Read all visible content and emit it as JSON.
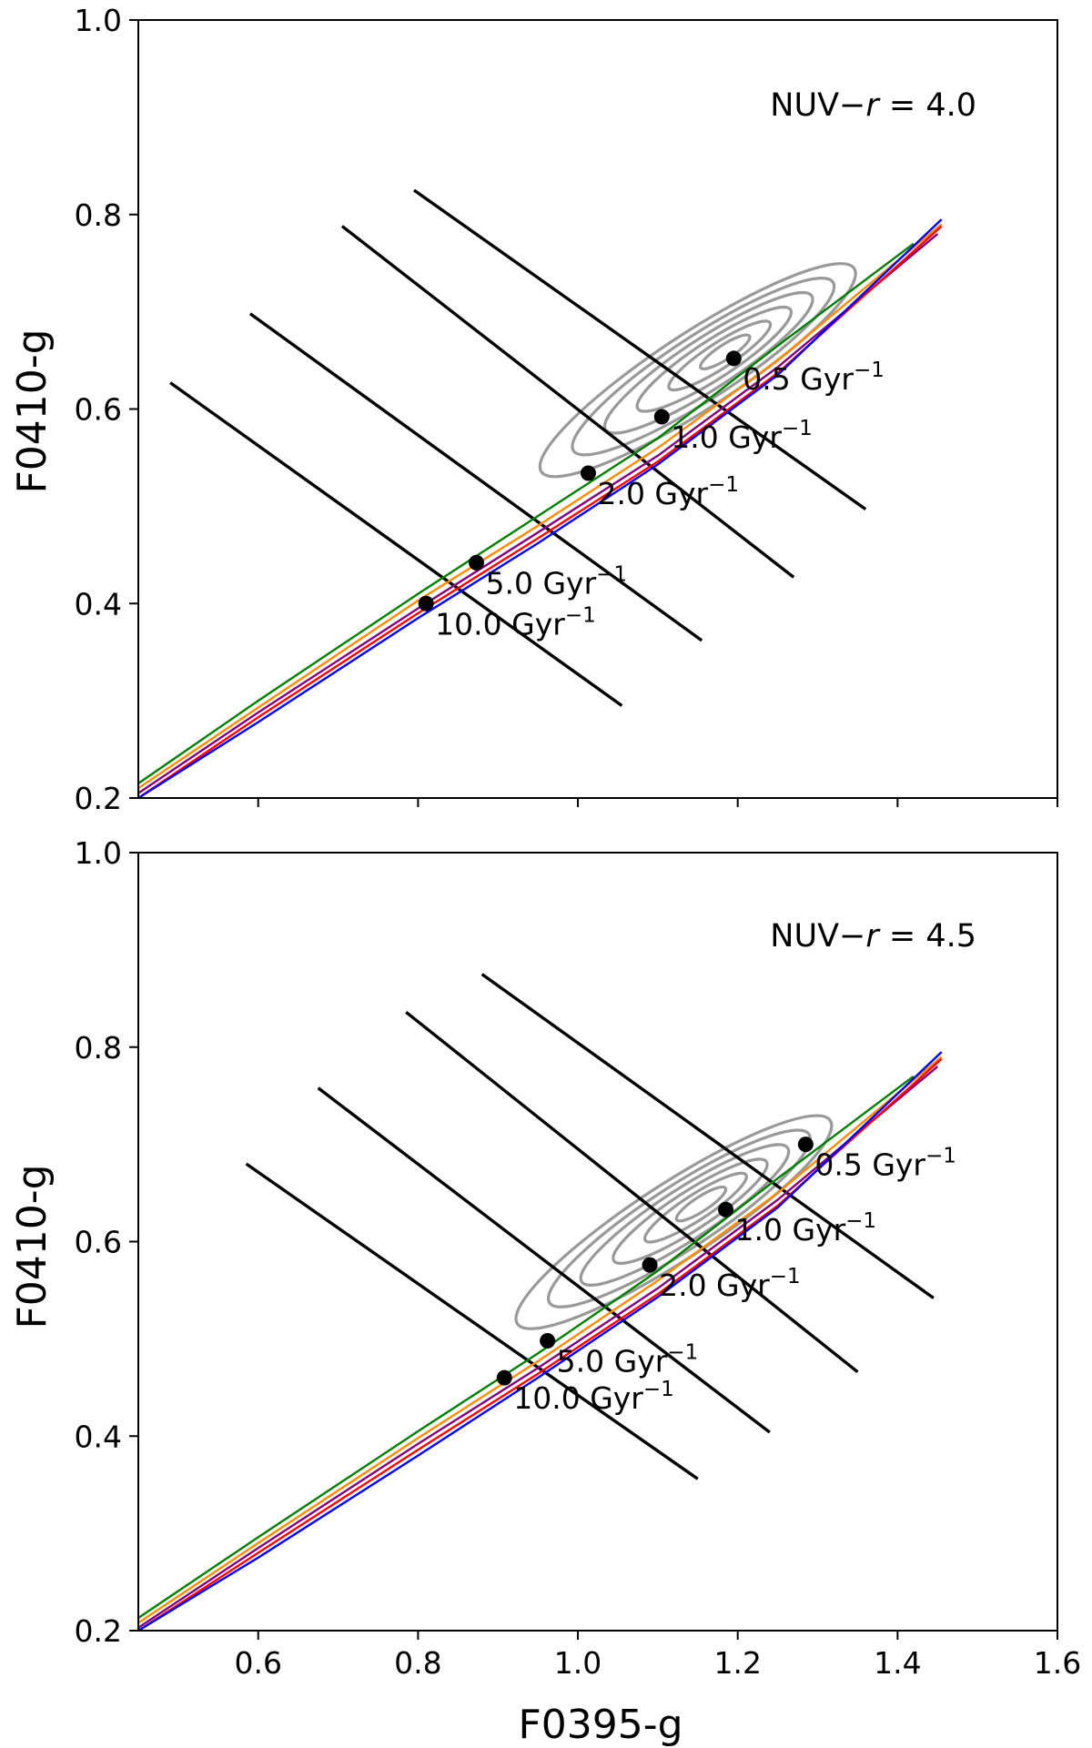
{
  "chart_data": [
    {
      "type": "line",
      "panel": "top",
      "annotation": {
        "prefix": "NUV−",
        "italic": "r",
        "suffix": " = 4.0"
      },
      "xlabel": "",
      "ylabel": "F0410-g",
      "xlim": [
        0.45,
        1.6
      ],
      "ylim": [
        0.2,
        1.0
      ],
      "xticks": [
        0.6,
        0.8,
        1.0,
        1.2,
        1.4,
        1.6
      ],
      "xtick_labels": [],
      "yticks": [
        0.2,
        0.4,
        0.6,
        0.8,
        1.0
      ],
      "ytick_labels": [
        "0.2",
        "0.4",
        "0.6",
        "0.8",
        "1.0"
      ],
      "series": [
        {
          "name": "green",
          "color": "#008000",
          "x": [
            0.45,
            0.6,
            0.8,
            0.95,
            1.1,
            1.25,
            1.42
          ],
          "y": [
            0.215,
            0.3,
            0.41,
            0.49,
            0.57,
            0.665,
            0.77
          ]
        },
        {
          "name": "orange",
          "color": "#ff8c00",
          "x": [
            0.45,
            0.6,
            0.8,
            0.95,
            1.1,
            1.25,
            1.455
          ],
          "y": [
            0.21,
            0.293,
            0.403,
            0.48,
            0.56,
            0.65,
            0.79
          ]
        },
        {
          "name": "purple",
          "color": "#800080",
          "x": [
            0.45,
            0.6,
            0.8,
            0.95,
            1.1,
            1.25,
            1.45
          ],
          "y": [
            0.205,
            0.288,
            0.395,
            0.473,
            0.552,
            0.643,
            0.78
          ]
        },
        {
          "name": "red",
          "color": "#ff0000",
          "x": [
            0.45,
            0.6,
            0.8,
            0.95,
            1.1,
            1.25,
            1.455
          ],
          "y": [
            0.2,
            0.283,
            0.39,
            0.467,
            0.546,
            0.637,
            0.788
          ]
        },
        {
          "name": "blue",
          "color": "#0000ff",
          "x": [
            0.45,
            0.6,
            0.8,
            0.95,
            1.1,
            1.25,
            1.455
          ],
          "y": [
            0.2,
            0.278,
            0.385,
            0.462,
            0.543,
            0.635,
            0.795
          ]
        }
      ],
      "iso_lines": [
        {
          "x": [
            0.49,
            1.055
          ],
          "y": [
            0.627,
            0.295
          ]
        },
        {
          "x": [
            0.59,
            1.155
          ],
          "y": [
            0.698,
            0.362
          ]
        },
        {
          "x": [
            0.705,
            1.27
          ],
          "y": [
            0.788,
            0.427
          ]
        },
        {
          "x": [
            0.795,
            1.36
          ],
          "y": [
            0.825,
            0.497
          ]
        }
      ],
      "points": [
        {
          "x": 1.195,
          "y": 0.652,
          "label": "0.5 Gyr",
          "superscript": "−1"
        },
        {
          "x": 1.105,
          "y": 0.592,
          "label": "1.0 Gyr",
          "superscript": "−1"
        },
        {
          "x": 1.013,
          "y": 0.534,
          "label": "2.0 Gyr",
          "superscript": "−1"
        },
        {
          "x": 0.873,
          "y": 0.442,
          "label": "5.0 Gyr",
          "superscript": "−1"
        },
        {
          "x": 0.81,
          "y": 0.4,
          "label": "10.0 Gyr",
          "superscript": "−1"
        }
      ],
      "contour_center": [
        1.15,
        0.64
      ],
      "contour_angle_deg": 33
    },
    {
      "type": "line",
      "panel": "bottom",
      "annotation": {
        "prefix": "NUV−",
        "italic": "r",
        "suffix": " = 4.5"
      },
      "xlabel": "F0395-g",
      "ylabel": "F0410-g",
      "xlim": [
        0.45,
        1.6
      ],
      "ylim": [
        0.2,
        1.0
      ],
      "xticks": [
        0.6,
        0.8,
        1.0,
        1.2,
        1.4,
        1.6
      ],
      "xtick_labels": [
        "0.6",
        "0.8",
        "1.0",
        "1.2",
        "1.4",
        "1.6"
      ],
      "yticks": [
        0.2,
        0.4,
        0.6,
        0.8,
        1.0
      ],
      "ytick_labels": [
        "0.2",
        "0.4",
        "0.6",
        "0.8",
        "1.0"
      ],
      "series": [
        {
          "name": "green",
          "color": "#008000",
          "x": [
            0.45,
            0.6,
            0.8,
            0.95,
            1.1,
            1.25,
            1.42
          ],
          "y": [
            0.213,
            0.296,
            0.405,
            0.485,
            0.57,
            0.665,
            0.77
          ]
        },
        {
          "name": "orange",
          "color": "#ff8c00",
          "x": [
            0.45,
            0.6,
            0.8,
            0.95,
            1.1,
            1.25,
            1.455
          ],
          "y": [
            0.208,
            0.29,
            0.398,
            0.477,
            0.56,
            0.65,
            0.79
          ]
        },
        {
          "name": "purple",
          "color": "#800080",
          "x": [
            0.45,
            0.6,
            0.8,
            0.95,
            1.1,
            1.25,
            1.45
          ],
          "y": [
            0.203,
            0.285,
            0.392,
            0.47,
            0.552,
            0.643,
            0.78
          ]
        },
        {
          "name": "red",
          "color": "#ff0000",
          "x": [
            0.45,
            0.6,
            0.8,
            0.95,
            1.1,
            1.25,
            1.455
          ],
          "y": [
            0.2,
            0.28,
            0.386,
            0.464,
            0.546,
            0.637,
            0.788
          ]
        },
        {
          "name": "blue",
          "color": "#0000ff",
          "x": [
            0.45,
            0.6,
            0.8,
            0.95,
            1.1,
            1.25,
            1.455
          ],
          "y": [
            0.2,
            0.275,
            0.38,
            0.46,
            0.543,
            0.635,
            0.795
          ]
        }
      ],
      "iso_lines": [
        {
          "x": [
            0.585,
            1.15
          ],
          "y": [
            0.68,
            0.356
          ]
        },
        {
          "x": [
            0.675,
            1.24
          ],
          "y": [
            0.758,
            0.404
          ]
        },
        {
          "x": [
            0.785,
            1.35
          ],
          "y": [
            0.836,
            0.466
          ]
        },
        {
          "x": [
            0.88,
            1.445
          ],
          "y": [
            0.875,
            0.542
          ]
        }
      ],
      "points": [
        {
          "x": 1.285,
          "y": 0.7,
          "label": "0.5 Gyr",
          "superscript": "−1"
        },
        {
          "x": 1.185,
          "y": 0.633,
          "label": "1.0 Gyr",
          "superscript": "−1"
        },
        {
          "x": 1.09,
          "y": 0.576,
          "label": "2.0 Gyr",
          "superscript": "−1"
        },
        {
          "x": 0.962,
          "y": 0.498,
          "label": "5.0 Gyr",
          "superscript": "−1"
        },
        {
          "x": 0.908,
          "y": 0.46,
          "label": "10.0 Gyr",
          "superscript": "−1"
        }
      ],
      "contour_center": [
        1.12,
        0.62
      ],
      "contour_angle_deg": 33
    }
  ]
}
